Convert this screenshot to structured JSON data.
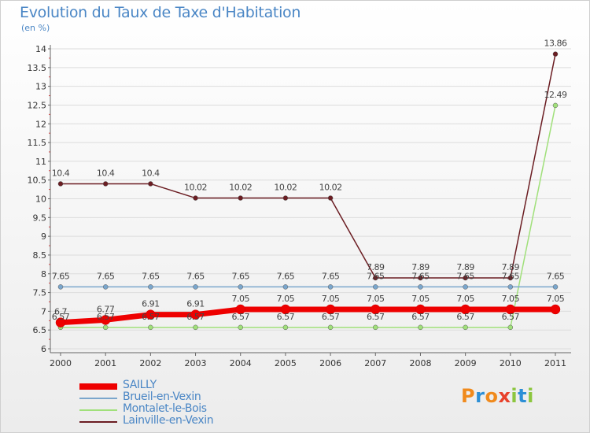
{
  "chart_data": {
    "type": "line",
    "title": "Evolution du Taux de Taxe d'Habitation",
    "subtitle": "(en %)",
    "categories": [
      "2000",
      "2001",
      "2002",
      "2003",
      "2004",
      "2005",
      "2006",
      "2007",
      "2008",
      "2009",
      "2010",
      "2011"
    ],
    "ylim": [
      6,
      14
    ],
    "yticks": [
      "6",
      "6.5",
      "7",
      "7.5",
      "8",
      "8.5",
      "9",
      "9.5",
      "10",
      "10.5",
      "11",
      "11.5",
      "12",
      "12.5",
      "13",
      "13.5",
      "14"
    ],
    "legend_position": "bottom-left",
    "series": [
      {
        "name": "Lainville-en-Vexin",
        "color": "#6b1d22",
        "values": [
          10.4,
          10.4,
          10.4,
          10.02,
          10.02,
          10.02,
          10.02,
          7.89,
          7.89,
          7.89,
          7.89,
          13.86
        ],
        "labels": [
          "10.4",
          "10.4",
          "10.4",
          "10.02",
          "10.02",
          "10.02",
          "10.02",
          "7.89",
          "7.89",
          "7.89",
          "7.89",
          "13.86"
        ]
      },
      {
        "name": "Montalet-le-Bois",
        "color": "#a0e07a",
        "values": [
          6.57,
          6.57,
          6.57,
          6.57,
          6.57,
          6.57,
          6.57,
          6.57,
          6.57,
          6.57,
          6.57,
          12.49
        ],
        "labels": [
          "6.57",
          "6.57",
          "6.57",
          "6.57",
          "6.57",
          "6.57",
          "6.57",
          "6.57",
          "6.57",
          "6.57",
          "6.57",
          "12.49"
        ]
      },
      {
        "name": "Brueil-en-Vexin",
        "color": "#7aa6cc",
        "values": [
          7.65,
          7.65,
          7.65,
          7.65,
          7.65,
          7.65,
          7.65,
          7.65,
          7.65,
          7.65,
          7.65,
          7.65
        ],
        "labels": [
          "7.65",
          "7.65",
          "7.65",
          "7.65",
          "7.65",
          "7.65",
          "7.65",
          "7.65",
          "7.65",
          "7.65",
          "7.65",
          "7.65"
        ]
      },
      {
        "name": "SAILLY",
        "color": "#ee0000",
        "values": [
          6.7,
          6.77,
          6.91,
          6.91,
          7.05,
          7.05,
          7.05,
          7.05,
          7.05,
          7.05,
          7.05,
          7.05
        ],
        "labels": [
          "6.7",
          "6.77",
          "6.91",
          "6.91",
          "7.05",
          "7.05",
          "7.05",
          "7.05",
          "7.05",
          "7.05",
          "7.05",
          "7.05"
        ]
      }
    ],
    "legend": [
      "SAILLY",
      "Brueil-en-Vexin",
      "Montalet-le-Bois",
      "Lainville-en-Vexin"
    ]
  },
  "logo": {
    "text": "Proxiti",
    "letters": [
      "P",
      "r",
      "o",
      "x",
      "i",
      "t",
      "i"
    ],
    "colors": [
      "#f08a1c",
      "#2c8fd6",
      "#f08a1c",
      "#e8412a",
      "#8cc63f",
      "#2c8fd6",
      "#8cc63f"
    ]
  }
}
